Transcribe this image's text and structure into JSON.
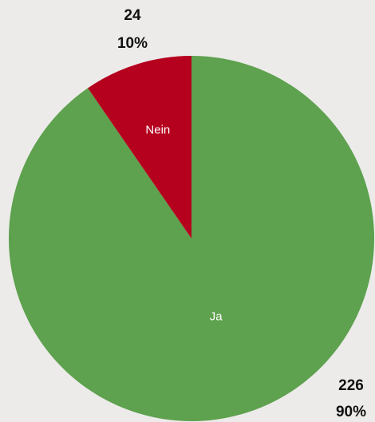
{
  "chart_data": {
    "type": "pie",
    "categories": [
      "Ja",
      "Nein"
    ],
    "values": [
      226,
      24
    ],
    "percents": [
      {
        "value": 90,
        "label": "90%"
      },
      {
        "value": 10,
        "label": "10%"
      }
    ],
    "colors": [
      "#5ea14e",
      "#b5001e"
    ]
  }
}
